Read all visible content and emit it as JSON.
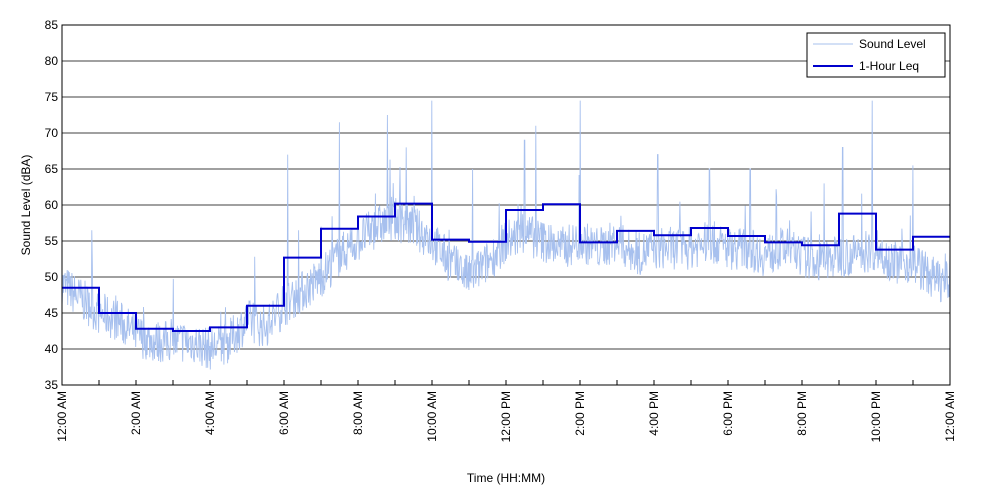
{
  "chart_data": {
    "type": "line",
    "title": "",
    "xlabel": "Time (HH:MM)",
    "ylabel": "Sound Level (dBA)",
    "xlim": [
      0,
      24
    ],
    "ylim": [
      35,
      85
    ],
    "grid": "horizontal",
    "legend_position": "top-right",
    "colors": {
      "sound_level": "#a7c0ee",
      "leq": "#0000cc"
    },
    "x_ticks": [
      {
        "x": 0,
        "label": "12:00 AM"
      },
      {
        "x": 2,
        "label": "2:00 AM"
      },
      {
        "x": 4,
        "label": "4:00 AM"
      },
      {
        "x": 6,
        "label": "6:00 AM"
      },
      {
        "x": 8,
        "label": "8:00 AM"
      },
      {
        "x": 10,
        "label": "10:00 AM"
      },
      {
        "x": 12,
        "label": "12:00 PM"
      },
      {
        "x": 14,
        "label": "2:00 PM"
      },
      {
        "x": 16,
        "label": "4:00 PM"
      },
      {
        "x": 18,
        "label": "6:00 PM"
      },
      {
        "x": 20,
        "label": "8:00 PM"
      },
      {
        "x": 22,
        "label": "10:00 PM"
      },
      {
        "x": 24,
        "label": "12:00 AM"
      }
    ],
    "y_ticks": [
      35,
      40,
      45,
      50,
      55,
      60,
      65,
      70,
      75,
      80,
      85
    ],
    "series": [
      {
        "name": "Sound Level",
        "style": "thin-line",
        "x": [
          0.0,
          0.5,
          1.0,
          1.5,
          2.0,
          2.5,
          3.0,
          3.5,
          4.0,
          4.5,
          5.0,
          5.5,
          6.0,
          6.5,
          7.0,
          7.5,
          8.0,
          8.5,
          9.0,
          9.5,
          10.0,
          10.5,
          11.0,
          11.5,
          12.0,
          12.5,
          13.0,
          13.5,
          14.0,
          14.5,
          15.0,
          15.5,
          16.0,
          16.5,
          17.0,
          17.5,
          18.0,
          18.5,
          19.0,
          19.5,
          20.0,
          20.5,
          21.0,
          21.5,
          22.0,
          22.5,
          23.0,
          23.5,
          24.0
        ],
        "values": [
          49,
          47,
          45,
          44,
          42,
          41,
          41,
          41,
          40,
          41,
          44,
          43,
          46,
          48,
          50,
          53,
          55,
          57,
          58,
          57,
          55,
          52,
          50,
          52,
          55,
          56,
          55,
          54,
          55,
          54,
          55,
          53,
          54,
          54,
          54,
          55,
          54,
          54,
          53,
          54,
          53,
          52,
          53,
          53,
          54,
          52,
          52,
          50,
          49
        ],
        "peaks": [
          [
            0.8,
            56.5
          ],
          [
            6.1,
            67
          ],
          [
            7.5,
            71.5
          ],
          [
            8.8,
            72.5
          ],
          [
            9.3,
            68
          ],
          [
            10.0,
            74.5
          ],
          [
            11.1,
            65
          ],
          [
            12.5,
            69
          ],
          [
            12.8,
            71
          ],
          [
            14.0,
            74.5
          ],
          [
            16.1,
            67
          ],
          [
            17.5,
            65
          ],
          [
            18.6,
            65
          ],
          [
            20.6,
            63
          ],
          [
            21.1,
            68
          ],
          [
            21.9,
            74.5
          ],
          [
            23.0,
            65.5
          ]
        ]
      },
      {
        "name": "1-Hour Leq",
        "style": "step",
        "hour_starts": [
          0,
          1,
          2,
          3,
          4,
          5,
          6,
          7,
          8,
          9,
          10,
          11,
          12,
          13,
          14,
          15,
          16,
          17,
          18,
          19,
          20,
          21,
          22,
          23
        ],
        "values": [
          48.5,
          45.0,
          42.8,
          42.5,
          43.0,
          46.0,
          52.7,
          56.7,
          58.4,
          60.2,
          55.2,
          54.9,
          59.3,
          60.1,
          54.8,
          56.4,
          55.8,
          56.8,
          55.7,
          54.8,
          54.4,
          58.8,
          53.8,
          55.6
        ]
      }
    ]
  }
}
